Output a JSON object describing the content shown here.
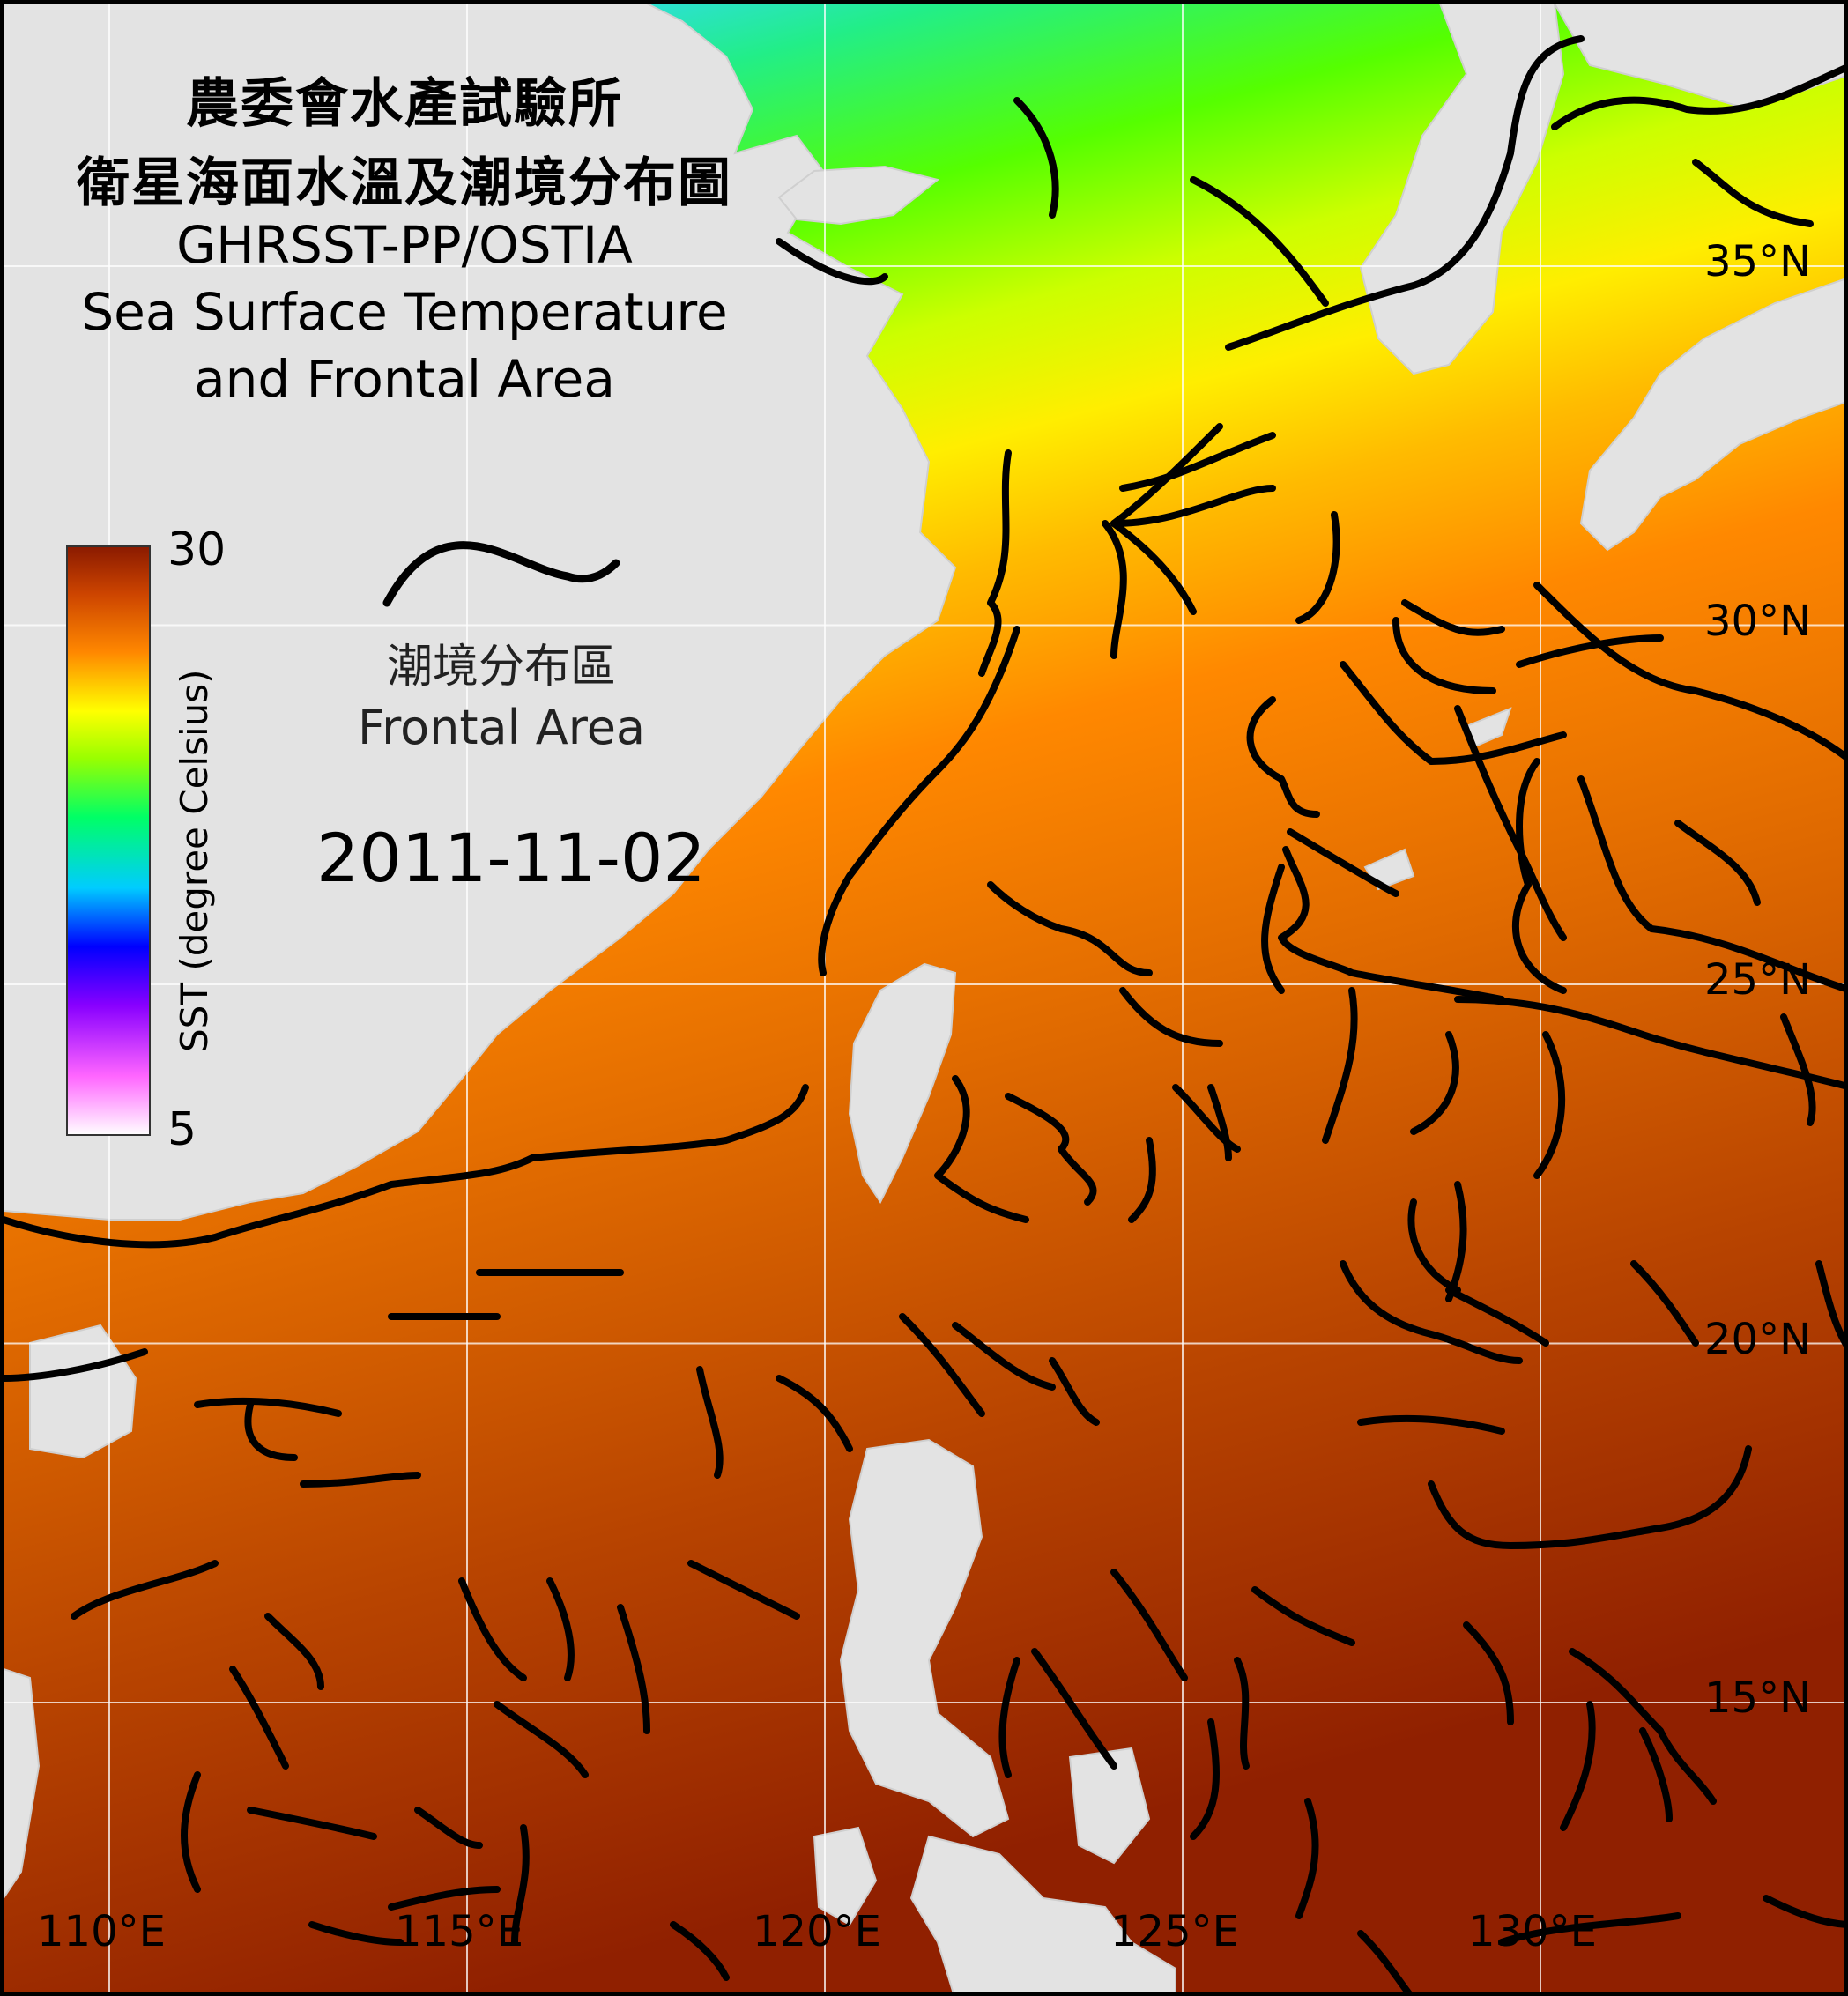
{
  "title": {
    "line1": "農委會水產試驗所",
    "line2": "衛星海面水溫及潮境分布圖",
    "line3": "GHRSST-PP/OSTIA",
    "line4": "Sea Surface Temperature",
    "line5": "and Frontal Area"
  },
  "colorbar": {
    "title": "SST (degree Celsius)",
    "max_label": "30",
    "min_label": "5",
    "range": [
      5,
      30
    ],
    "colors": [
      "#ffffff",
      "#ff66ff",
      "#8800ff",
      "#0000ff",
      "#00ccff",
      "#00ff66",
      "#99ff00",
      "#ffff00",
      "#ff8800",
      "#cc4400",
      "#8a1a00"
    ]
  },
  "legend": {
    "label_zh": "潮境分布區",
    "label_en": "Frontal Area",
    "line_icon": "frontal-line-icon"
  },
  "date": "2011-11-02",
  "grid": {
    "latitudes": [
      {
        "value": 35,
        "label": "35°N"
      },
      {
        "value": 30,
        "label": "30°N"
      },
      {
        "value": 25,
        "label": "25°N"
      },
      {
        "value": 20,
        "label": "20°N"
      },
      {
        "value": 15,
        "label": "15°N"
      }
    ],
    "longitudes": [
      {
        "value": 110,
        "label": "110°E"
      },
      {
        "value": 115,
        "label": "115°E"
      },
      {
        "value": 120,
        "label": "120°E"
      },
      {
        "value": 125,
        "label": "125°E"
      },
      {
        "value": 130,
        "label": "130°E"
      }
    ]
  },
  "colors": {
    "land": "#e3e3e3",
    "front": "#000000",
    "grid": "#ffffff"
  }
}
